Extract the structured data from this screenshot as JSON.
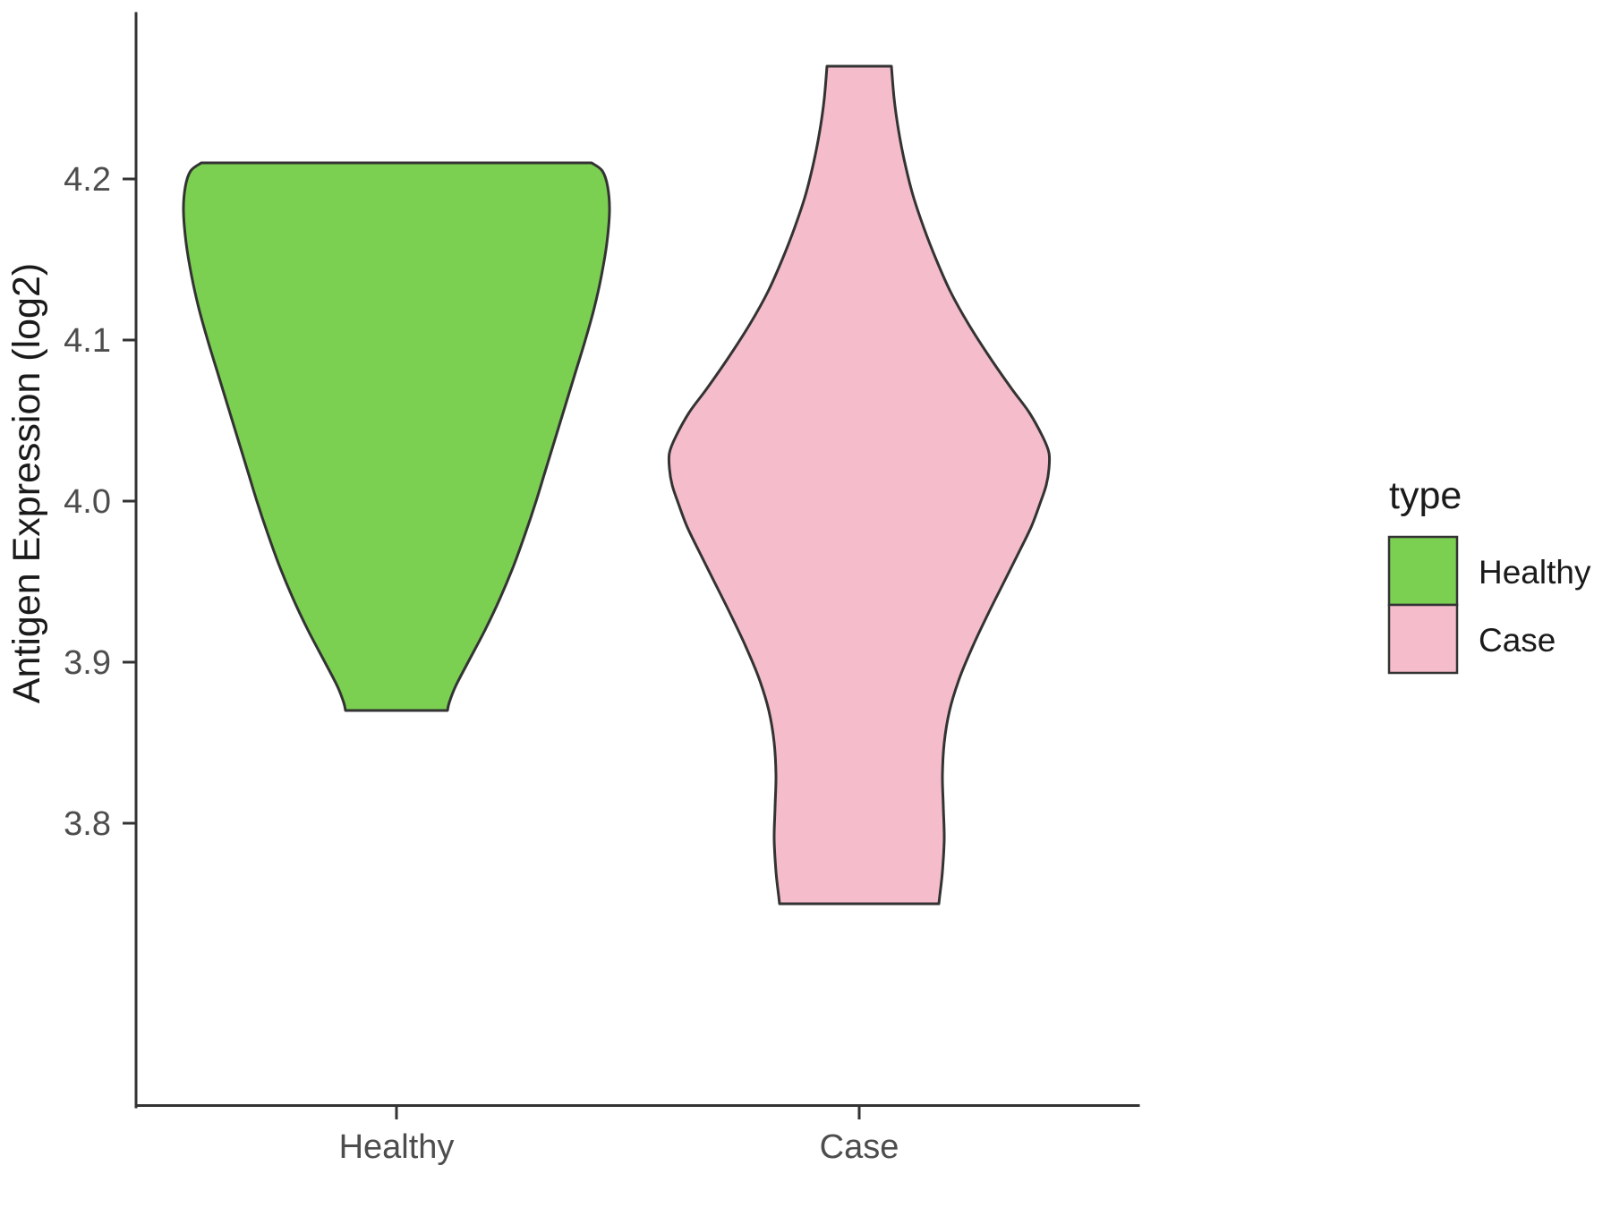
{
  "chart_data": {
    "type": "violin",
    "title": "",
    "xlabel": "",
    "ylabel": "Antigen Expression (log2)",
    "categories": [
      "Healthy",
      "Case"
    ],
    "y_ticks": [
      "3.8",
      "3.9",
      "4.0",
      "4.1",
      "4.2"
    ],
    "y_axis_range_shown": [
      3.62,
      4.3
    ],
    "grid": "off",
    "legend": {
      "title": "type",
      "position": "right",
      "entries": [
        {
          "label": "Healthy",
          "color": "#7BD052"
        },
        {
          "label": "Case",
          "color": "#F5BDCB"
        }
      ]
    },
    "outline_color": "#333333",
    "axis_color": "#333333",
    "tick_label_color": "#4d4d4d",
    "violins": [
      {
        "category": "Healthy",
        "color": "#7BD052",
        "y_min": 3.87,
        "y_max": 4.21,
        "widest_at": 4.18,
        "profile_y_halfwidthpx": [
          [
            4.21,
            218
          ],
          [
            4.205,
            230
          ],
          [
            4.195,
            236
          ],
          [
            4.18,
            238
          ],
          [
            4.16,
            235
          ],
          [
            4.14,
            229
          ],
          [
            4.12,
            221
          ],
          [
            4.1,
            211
          ],
          [
            4.08,
            200
          ],
          [
            4.06,
            189
          ],
          [
            4.04,
            178
          ],
          [
            4.02,
            167
          ],
          [
            4.0,
            156
          ],
          [
            3.98,
            144
          ],
          [
            3.96,
            131
          ],
          [
            3.94,
            116
          ],
          [
            3.92,
            99
          ],
          [
            3.9,
            80
          ],
          [
            3.885,
            66
          ],
          [
            3.875,
            59
          ],
          [
            3.87,
            57
          ]
        ]
      },
      {
        "category": "Case",
        "color": "#F5BDCB",
        "y_min": 3.75,
        "y_max": 4.27,
        "widest_at": 4.03,
        "profile_y_halfwidthpx": [
          [
            4.27,
            36
          ],
          [
            4.25,
            39
          ],
          [
            4.23,
            44
          ],
          [
            4.21,
            51
          ],
          [
            4.19,
            60
          ],
          [
            4.17,
            72
          ],
          [
            4.15,
            86
          ],
          [
            4.13,
            102
          ],
          [
            4.11,
            122
          ],
          [
            4.09,
            145
          ],
          [
            4.07,
            170
          ],
          [
            4.055,
            190
          ],
          [
            4.04,
            205
          ],
          [
            4.03,
            212
          ],
          [
            4.02,
            212
          ],
          [
            4.01,
            209
          ],
          [
            4.0,
            203
          ],
          [
            3.985,
            193
          ],
          [
            3.97,
            180
          ],
          [
            3.95,
            162
          ],
          [
            3.93,
            144
          ],
          [
            3.91,
            127
          ],
          [
            3.89,
            112
          ],
          [
            3.87,
            101
          ],
          [
            3.85,
            95
          ],
          [
            3.83,
            93
          ],
          [
            3.81,
            94
          ],
          [
            3.79,
            95
          ],
          [
            3.77,
            93
          ],
          [
            3.755,
            90
          ],
          [
            3.75,
            89
          ]
        ]
      }
    ]
  }
}
